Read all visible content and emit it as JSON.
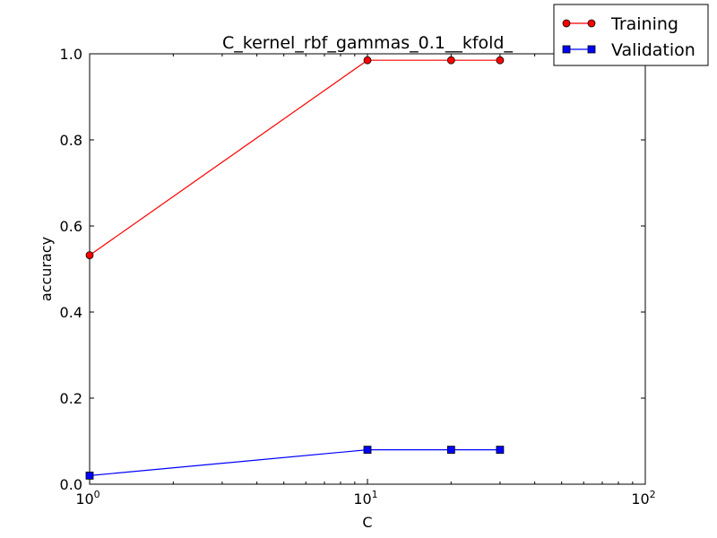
{
  "chart_data": {
    "type": "line",
    "title": "C_kernel_rbf_gammas_0.1__kfold_",
    "xlabel": "C",
    "ylabel": "accuracy",
    "xscale": "log",
    "xlim": [
      1,
      100
    ],
    "ylim": [
      0.0,
      1.0
    ],
    "grid": false,
    "legend_position": "top-right",
    "x_ticks": [
      {
        "base": "10",
        "exp": "0",
        "value": 1
      },
      {
        "base": "10",
        "exp": "1",
        "value": 10
      },
      {
        "base": "10",
        "exp": "2",
        "value": 100
      }
    ],
    "y_ticks": [
      {
        "label": "0.0",
        "value": 0.0
      },
      {
        "label": "0.2",
        "value": 0.2
      },
      {
        "label": "0.4",
        "value": 0.4
      },
      {
        "label": "0.6",
        "value": 0.6
      },
      {
        "label": "0.8",
        "value": 0.8
      },
      {
        "label": "1.0",
        "value": 1.0
      }
    ],
    "series": [
      {
        "name": "Training",
        "color": "#ff0000",
        "marker": "circle",
        "x": [
          1,
          10,
          20,
          30
        ],
        "y": [
          0.532,
          0.985,
          0.985,
          0.985
        ]
      },
      {
        "name": "Validation",
        "color": "#0000ff",
        "marker": "square",
        "x": [
          1,
          10,
          20,
          30
        ],
        "y": [
          0.02,
          0.08,
          0.08,
          0.08
        ]
      }
    ]
  }
}
